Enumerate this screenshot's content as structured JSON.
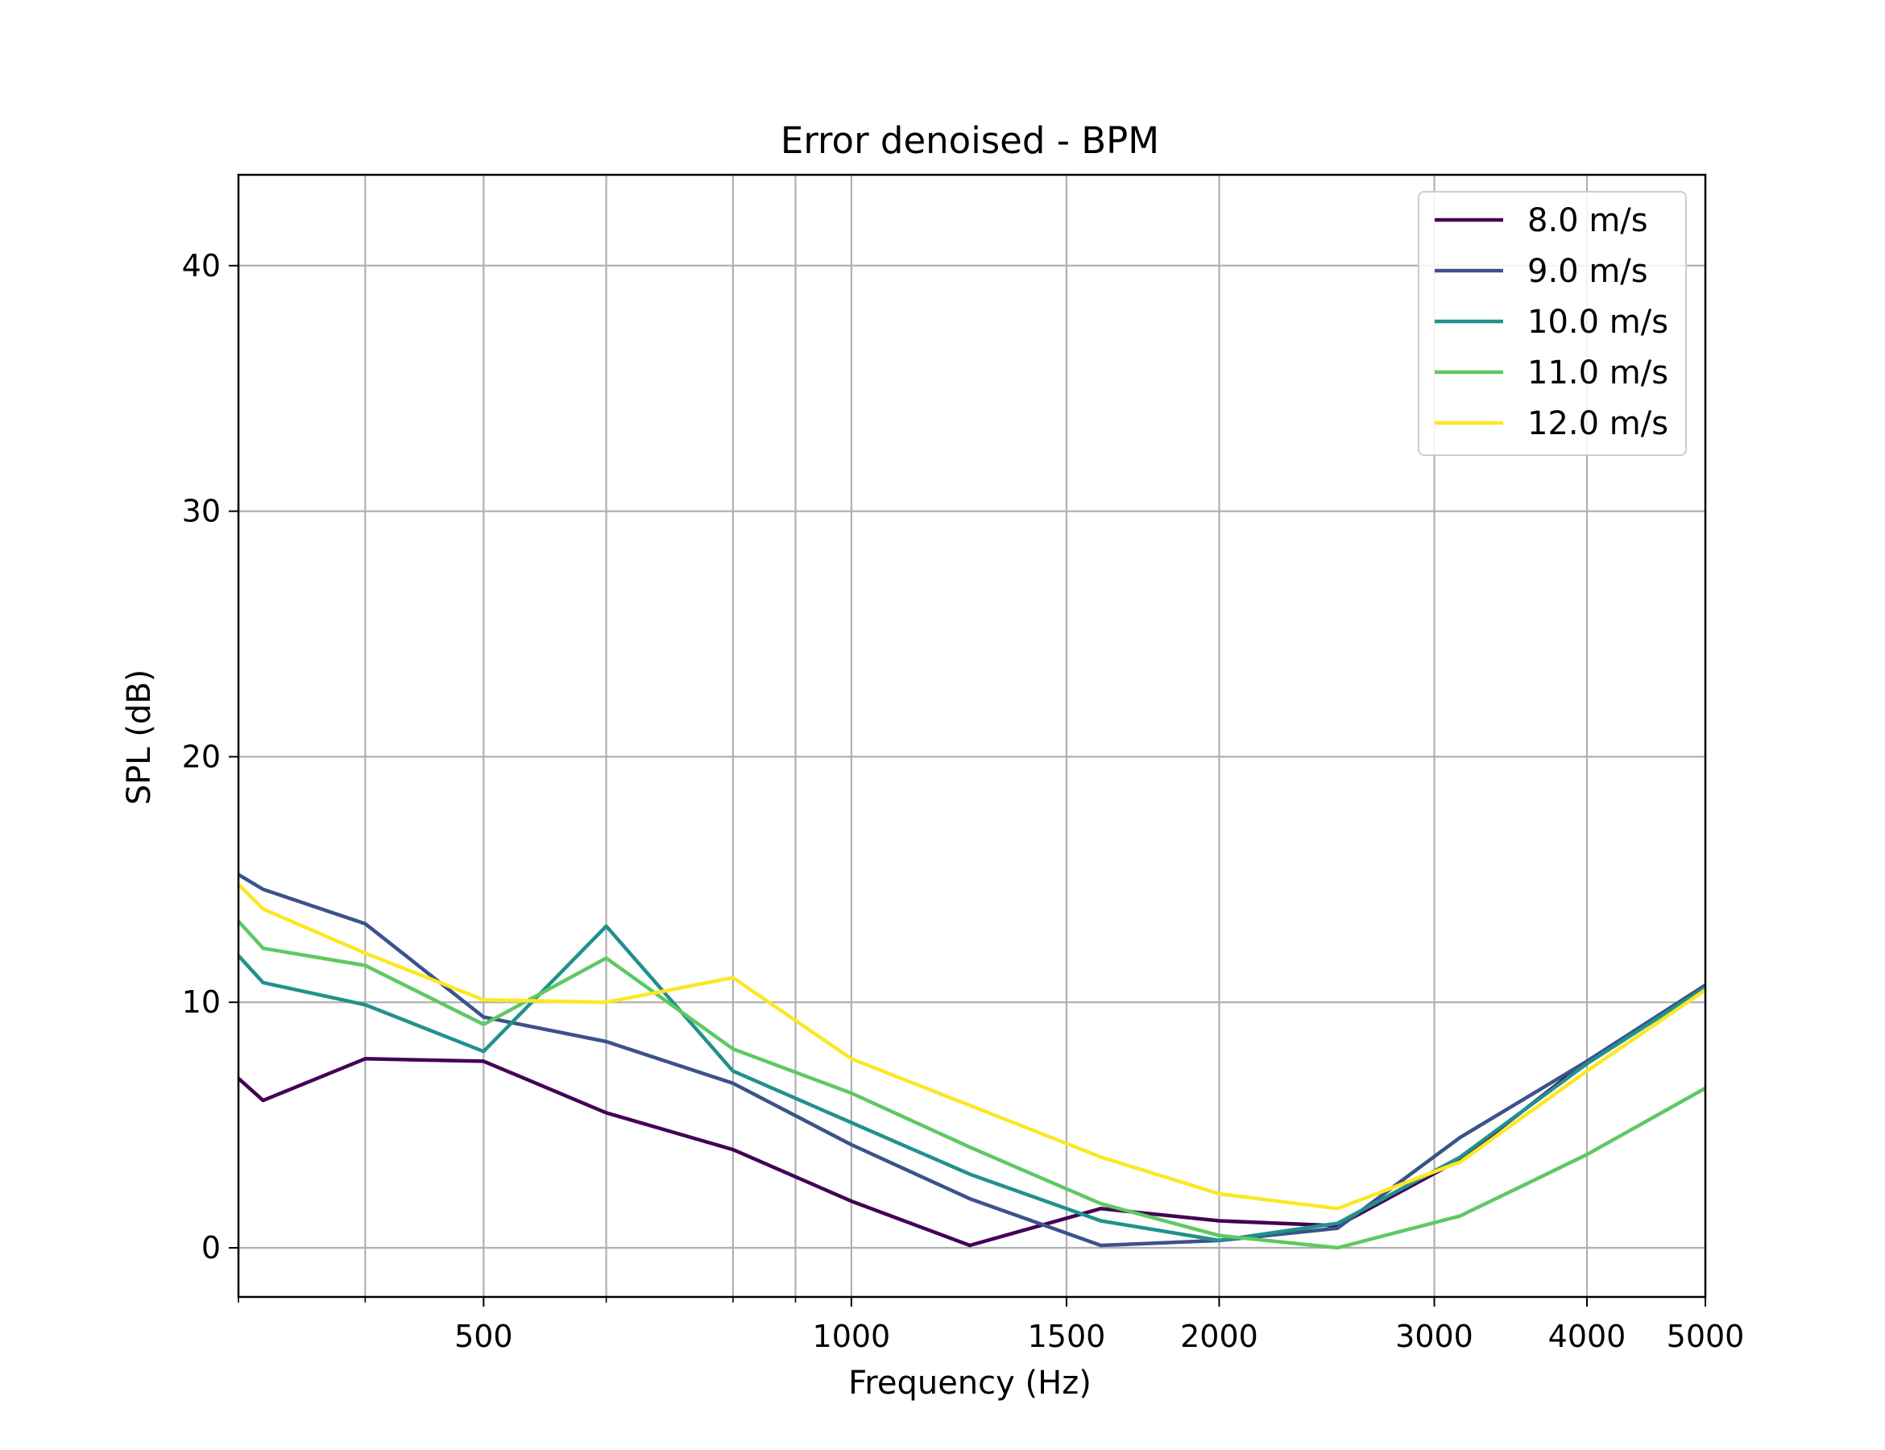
{
  "chart_data": {
    "type": "line",
    "title": "Error denoised - BPM",
    "xlabel": "Frequency (Hz)",
    "ylabel": "SPL (dB)",
    "xscale": "log",
    "xlim": [
      315,
      5000
    ],
    "ylim": [
      -2,
      43.7
    ],
    "grid": true,
    "legend_location": "upper right",
    "x_ticks": [
      500,
      1000,
      1500,
      2000,
      3000,
      4000,
      5000
    ],
    "x_minor_ticks": [
      315,
      400,
      630,
      800,
      900
    ],
    "y_ticks": [
      0,
      10,
      20,
      30,
      40
    ],
    "x": [
      315,
      330,
      400,
      500,
      630,
      800,
      1000,
      1250,
      1600,
      2000,
      2500,
      3150,
      4000,
      5000
    ],
    "series": [
      {
        "name": "8.0 m/s",
        "color": "#440154",
        "values": [
          6.9,
          6.0,
          7.7,
          7.6,
          5.5,
          4.0,
          1.9,
          0.1,
          1.6,
          1.1,
          0.9,
          3.6,
          7.6,
          10.6
        ]
      },
      {
        "name": "9.0 m/s",
        "color": "#3b528b",
        "values": [
          15.2,
          14.6,
          13.2,
          9.4,
          8.4,
          6.7,
          4.2,
          2.0,
          0.1,
          0.3,
          0.8,
          4.5,
          7.6,
          10.7
        ]
      },
      {
        "name": "10.0 m/s",
        "color": "#21918c",
        "values": [
          11.9,
          10.8,
          9.9,
          8.0,
          13.1,
          7.2,
          5.1,
          3.0,
          1.1,
          0.3,
          1.0,
          3.7,
          7.5,
          10.6
        ]
      },
      {
        "name": "11.0 m/s",
        "color": "#5ec962",
        "values": [
          13.3,
          12.2,
          11.5,
          9.1,
          11.8,
          8.1,
          6.3,
          4.1,
          1.8,
          0.5,
          0.0,
          1.3,
          3.8,
          6.5
        ]
      },
      {
        "name": "12.0 m/s",
        "color": "#fde725",
        "values": [
          14.8,
          13.8,
          12.0,
          10.1,
          10.0,
          11.0,
          7.7,
          5.8,
          3.7,
          2.2,
          1.6,
          3.5,
          7.2,
          10.5
        ]
      }
    ]
  }
}
